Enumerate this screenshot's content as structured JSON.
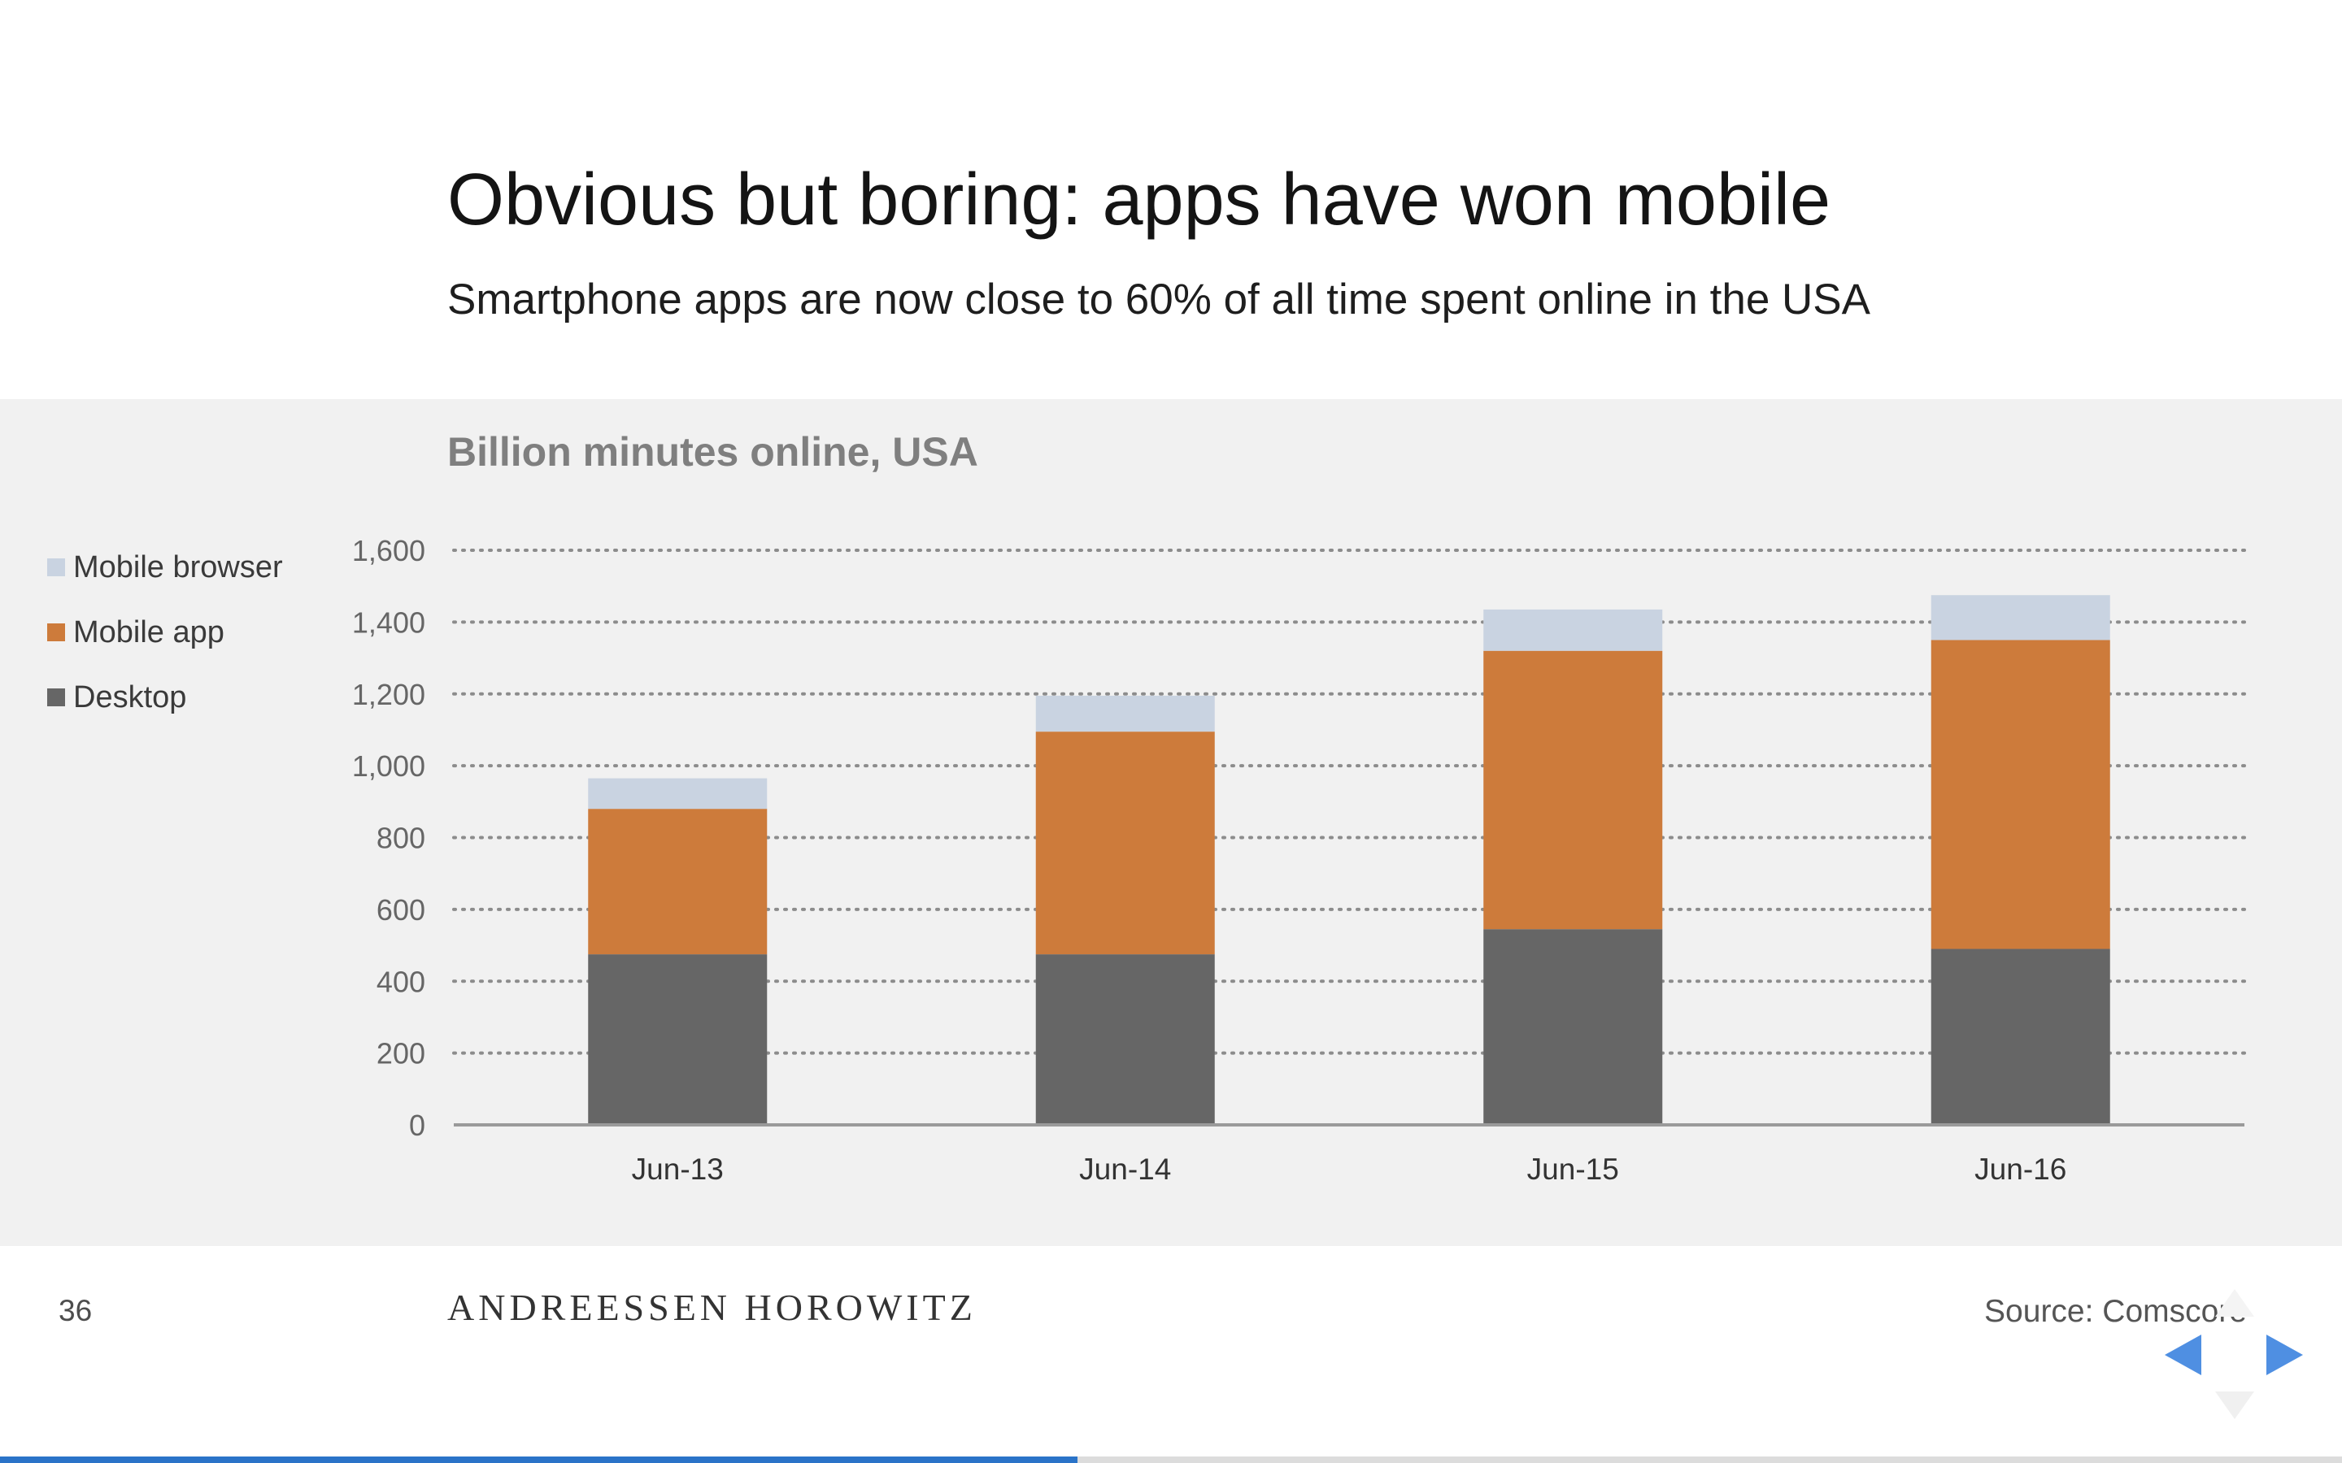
{
  "slide": {
    "title": "Obvious but boring: apps have won mobile",
    "subtitle": "Smartphone apps are now close to 60% of all time spent online in the USA",
    "page_number": "36",
    "brand": "ANDREESSEN HOROWITZ",
    "source": "Source: Comscore",
    "progress": 0.46
  },
  "colors": {
    "desktop": "#666666",
    "mobile_app": "#cd7b3b",
    "mobile_browser": "#c9d3e1",
    "panel_background": "#f1f1f1",
    "nav_arrow": "#4f8fe2",
    "progress": "#2a73c8"
  },
  "navigation": {
    "prev_icon": "triangle-left-icon",
    "next_icon": "triangle-right-icon",
    "down_icon": "triangle-down-icon"
  },
  "chart_data": {
    "type": "bar",
    "stacked": true,
    "title": "Billion minutes online, USA",
    "xlabel": "",
    "ylabel": "",
    "categories": [
      "Jun-13",
      "Jun-14",
      "Jun-15",
      "Jun-16"
    ],
    "series": [
      {
        "name": "Desktop",
        "values": [
          475,
          475,
          545,
          490
        ]
      },
      {
        "name": "Mobile app",
        "values": [
          405,
          620,
          775,
          860
        ]
      },
      {
        "name": "Mobile browser",
        "values": [
          85,
          100,
          115,
          125
        ]
      }
    ],
    "legend_order": [
      "Mobile browser",
      "Mobile app",
      "Desktop"
    ],
    "ylim": [
      0,
      1600
    ],
    "yticks": [
      0,
      200,
      400,
      600,
      800,
      1000,
      1200,
      1400,
      1600
    ],
    "ytick_labels": [
      "0",
      "200",
      "400",
      "600",
      "800",
      "1,000",
      "1,200",
      "1,400",
      "1,600"
    ],
    "grid": "dotted horizontal",
    "legend_position": "left"
  }
}
